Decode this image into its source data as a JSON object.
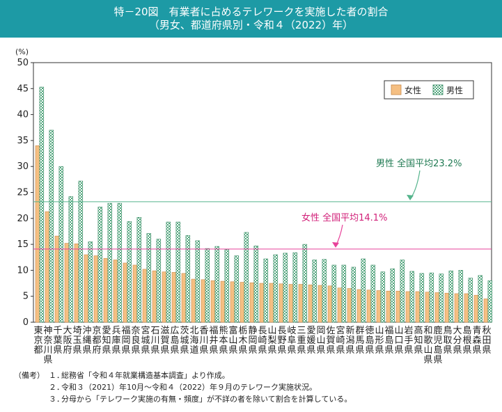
{
  "title": {
    "line1": "特－20図　有業者に占めるテレワークを実施した者の割合",
    "line2": "（男女、都道府県別・令和４（2022）年）"
  },
  "colors": {
    "header": "#1d9aa5",
    "female": "#f5bf82",
    "male_fill": "#cfe9dc",
    "male_edge": "#5aa985",
    "male_avg_line": "#55b48c",
    "female_avg_line": "#e8429a"
  },
  "chart_data": {
    "type": "bar",
    "ylabel": "(%)",
    "ylim": [
      0,
      50
    ],
    "yticks": [
      0,
      5,
      10,
      15,
      20,
      25,
      30,
      35,
      40,
      45,
      50
    ],
    "grid": false,
    "legend_position": "top-right",
    "categories": [
      "東京都",
      "神奈川県",
      "千葉県",
      "大阪府",
      "埼玉県",
      "沖縄県",
      "京都府",
      "愛知県",
      "兵庫県",
      "福岡県",
      "奈良県",
      "宮城県",
      "石川県",
      "滋賀県",
      "広島県",
      "茨城県",
      "北海道",
      "香川県",
      "福井県",
      "熊本県",
      "富山県",
      "栃木県",
      "静岡県",
      "長崎県",
      "山梨県",
      "長野県",
      "岐阜県",
      "三重県",
      "愛媛県",
      "岡山県",
      "佐賀県",
      "宮崎県",
      "新潟県",
      "群馬県",
      "徳島県",
      "山形県",
      "福島県",
      "山口県",
      "岩手県",
      "高知県",
      "和歌山県",
      "鹿児島県",
      "鳥取県",
      "大分県",
      "島根県",
      "青森県",
      "秋田県"
    ],
    "series": [
      {
        "name": "女性",
        "values": [
          34.0,
          21.3,
          16.6,
          15.2,
          15.1,
          13.0,
          12.8,
          12.3,
          12.0,
          11.4,
          11.0,
          10.2,
          9.9,
          9.7,
          9.6,
          9.4,
          8.3,
          8.2,
          8.0,
          7.9,
          7.8,
          7.7,
          7.6,
          7.5,
          7.5,
          7.4,
          7.3,
          7.3,
          7.2,
          7.1,
          7.0,
          6.6,
          6.5,
          6.3,
          6.2,
          6.1,
          6.0,
          6.0,
          5.9,
          5.9,
          5.8,
          5.7,
          5.6,
          5.5,
          5.5,
          5.2,
          4.5
        ]
      },
      {
        "name": "男性",
        "values": [
          45.3,
          37.0,
          30.0,
          24.2,
          27.2,
          15.5,
          22.2,
          22.9,
          22.9,
          19.4,
          20.2,
          17.1,
          16.0,
          19.3,
          19.3,
          16.7,
          15.7,
          14.2,
          14.6,
          14.0,
          12.8,
          17.3,
          14.7,
          12.2,
          13.0,
          13.3,
          13.4,
          15.0,
          12.0,
          12.1,
          11.0,
          11.0,
          10.6,
          12.2,
          11.0,
          9.7,
          10.3,
          12.0,
          9.8,
          9.4,
          9.5,
          9.3,
          9.9,
          10.0,
          8.5,
          9.0,
          8.0
        ]
      }
    ],
    "annotations": [
      {
        "series": "男性",
        "label": "男性 全国平均23.2%",
        "value": 23.2
      },
      {
        "series": "女性",
        "label": "女性 全国平均14.1%",
        "value": 14.1
      }
    ]
  },
  "notes": {
    "lead": "（備考）",
    "items": [
      {
        "num": "１．",
        "text": "総務省「令和４年就業構造基本調査」より作成。"
      },
      {
        "num": "２．",
        "text": "令和３（2021）年10月～令和４（2022）年９月のテレワーク実施状況。"
      },
      {
        "num": "３．",
        "text": "分母から「テレワーク実施の有無・頻度」が不詳の者を除いて割合を計算している。"
      }
    ]
  }
}
